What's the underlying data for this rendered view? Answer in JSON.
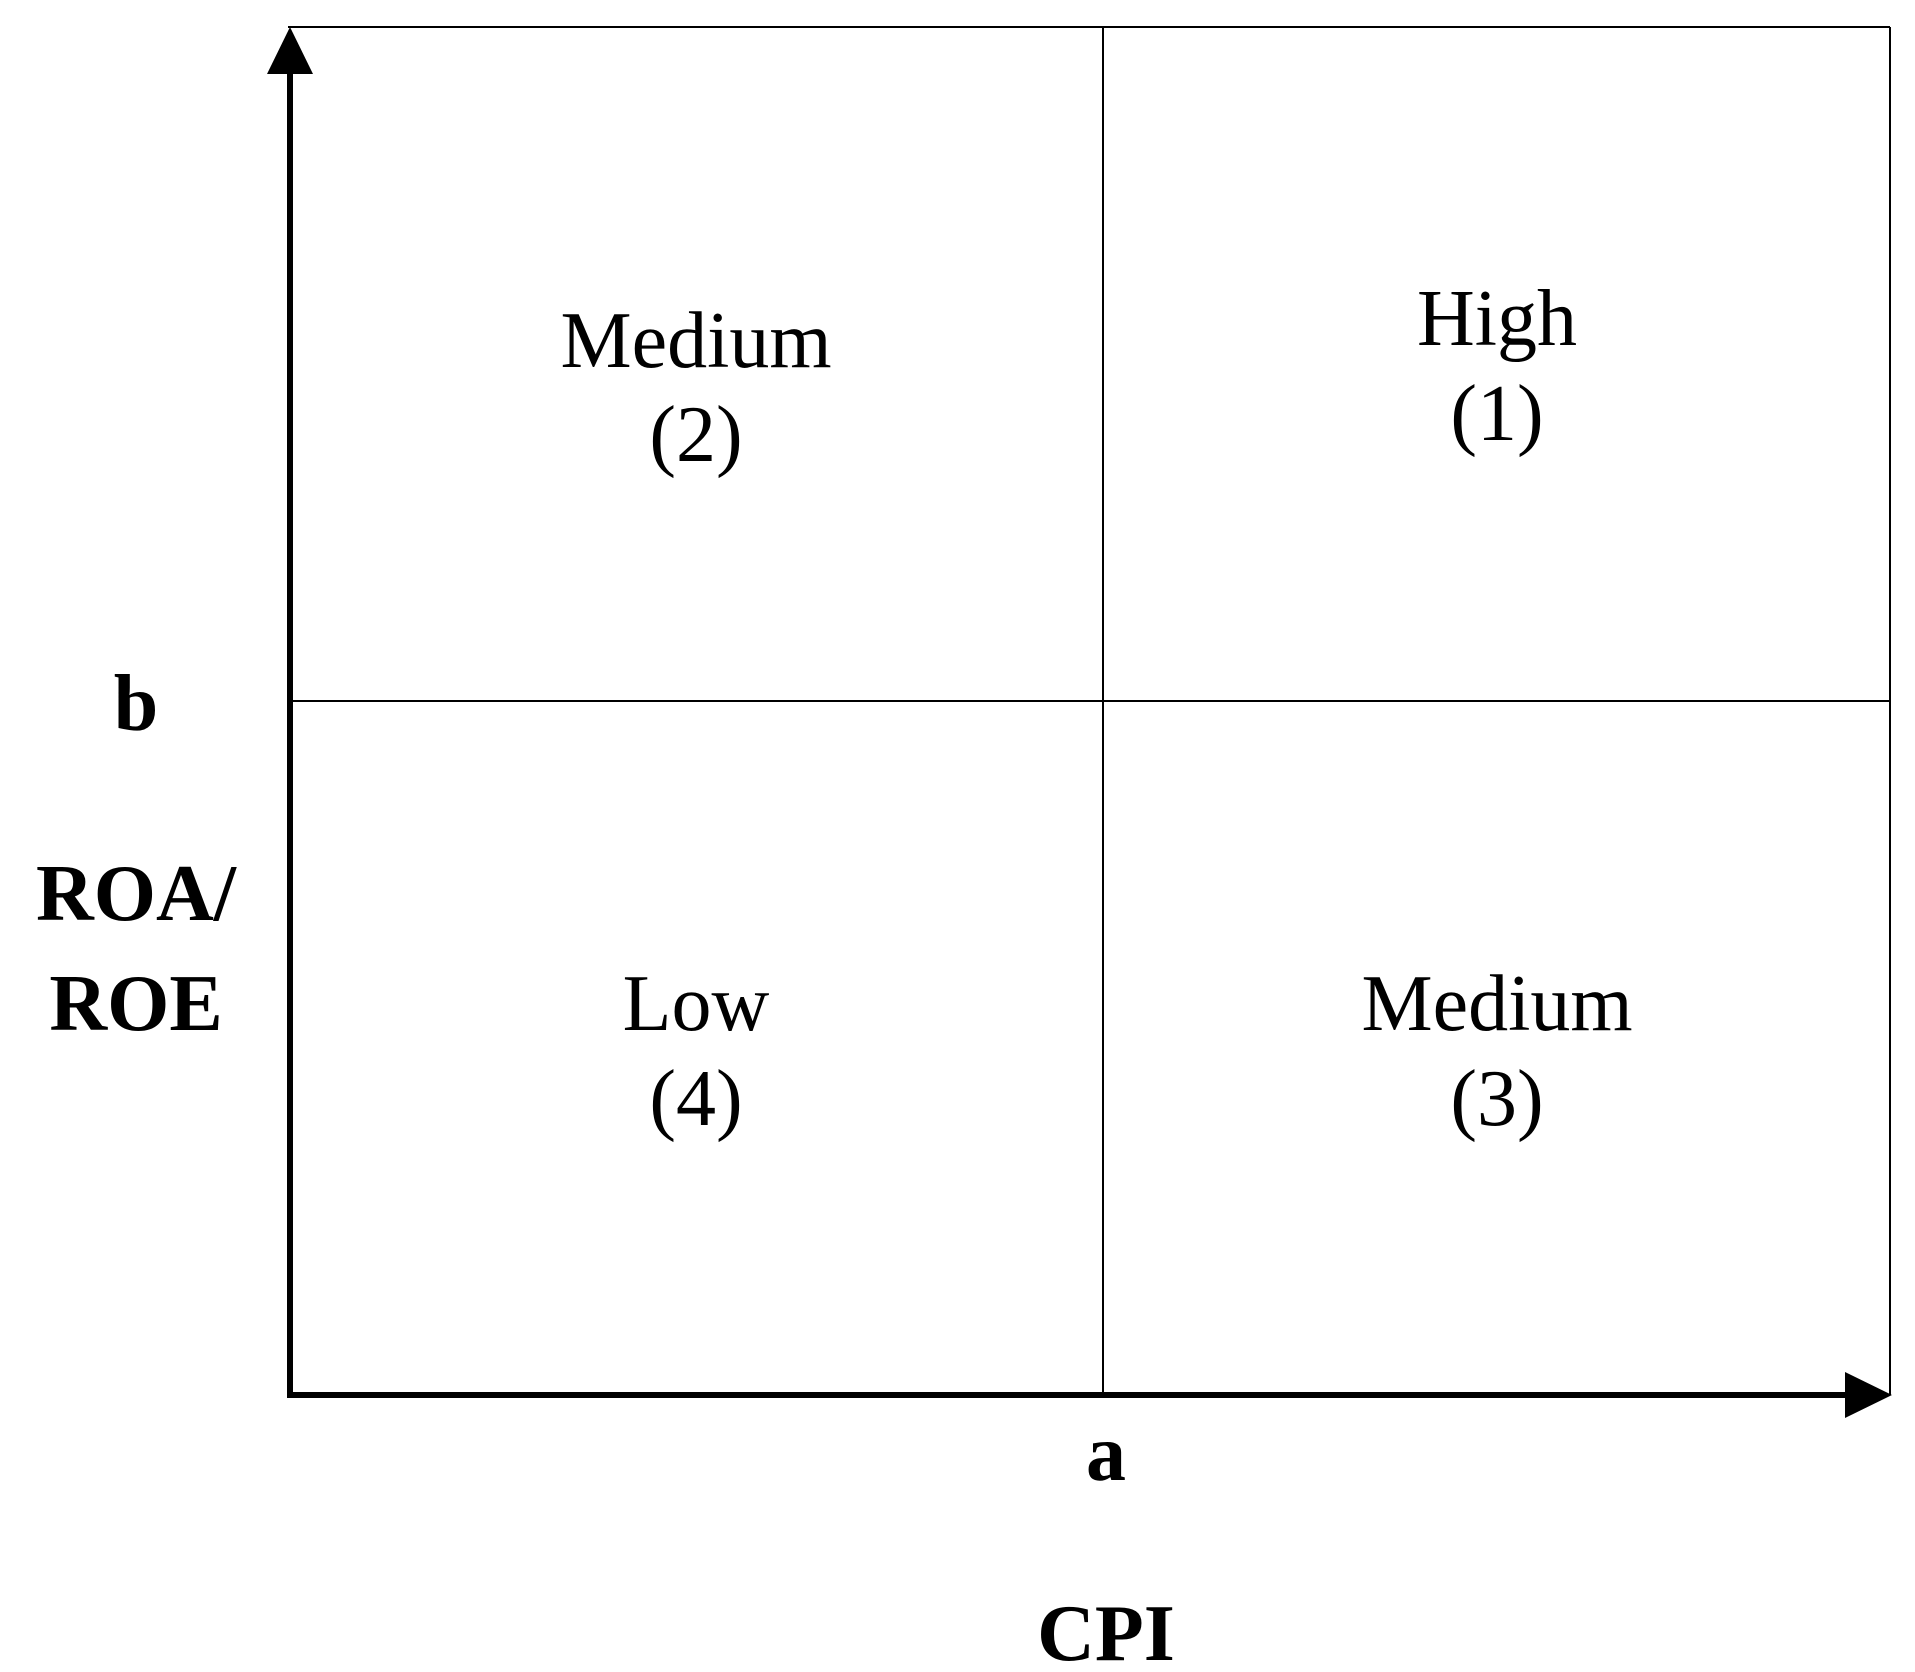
{
  "quadrants": {
    "top_left": {
      "label": "Medium",
      "rank": "(2)"
    },
    "top_right": {
      "label": "High",
      "rank": "(1)"
    },
    "bottom_left": {
      "label": "Low",
      "rank": "(4)"
    },
    "bottom_right": {
      "label": "Medium",
      "rank": "(3)"
    }
  },
  "y_axis": {
    "threshold_label": "b",
    "title_line1": "ROA/",
    "title_line2": "ROE"
  },
  "x_axis": {
    "threshold_label": "a",
    "title": "CPI"
  }
}
